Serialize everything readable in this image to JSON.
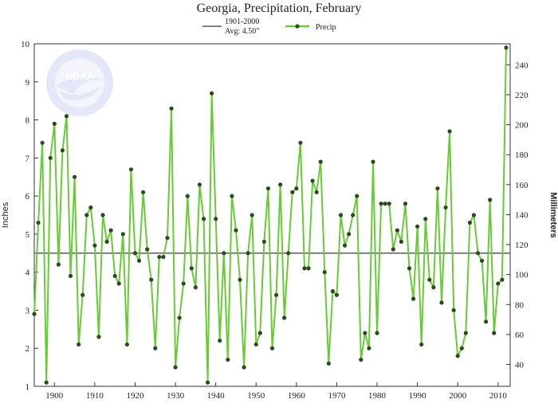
{
  "chart_data": {
    "type": "line",
    "title": "Georgia, Precipitation, February",
    "ylabel_left": "Inches",
    "ylabel_right": "Millimeters",
    "ylim": [
      1,
      10
    ],
    "xlim": [
      1895,
      2013
    ],
    "x_ticks": [
      1900,
      1910,
      1920,
      1930,
      1940,
      1950,
      1960,
      1970,
      1980,
      1990,
      2000,
      2010
    ],
    "y_ticks_left": [
      1,
      2,
      3,
      4,
      5,
      6,
      7,
      8,
      9,
      10
    ],
    "y_ticks_right": [
      40,
      60,
      80,
      100,
      120,
      140,
      160,
      180,
      200,
      220,
      240
    ],
    "grid": false,
    "legend_position": "top-center",
    "average": {
      "label_line1": "1901-2000",
      "label_line2": "Avg: 4.50\"",
      "value": 4.5,
      "color": "#666666"
    },
    "series": [
      {
        "name": "Precip",
        "color": "#66cc33",
        "marker_color": "#2d4a1e",
        "x": [
          1895,
          1896,
          1897,
          1898,
          1899,
          1900,
          1901,
          1902,
          1903,
          1904,
          1905,
          1906,
          1907,
          1908,
          1909,
          1910,
          1911,
          1912,
          1913,
          1914,
          1915,
          1916,
          1917,
          1918,
          1919,
          1920,
          1921,
          1922,
          1923,
          1924,
          1925,
          1926,
          1927,
          1928,
          1929,
          1930,
          1931,
          1932,
          1933,
          1934,
          1935,
          1936,
          1937,
          1938,
          1939,
          1940,
          1941,
          1942,
          1943,
          1944,
          1945,
          1946,
          1947,
          1948,
          1949,
          1950,
          1951,
          1952,
          1953,
          1954,
          1955,
          1956,
          1957,
          1958,
          1959,
          1960,
          1961,
          1962,
          1963,
          1964,
          1965,
          1966,
          1967,
          1968,
          1969,
          1970,
          1971,
          1972,
          1973,
          1974,
          1975,
          1976,
          1977,
          1978,
          1979,
          1980,
          1981,
          1982,
          1983,
          1984,
          1985,
          1986,
          1987,
          1988,
          1989,
          1990,
          1991,
          1992,
          1993,
          1994,
          1995,
          1996,
          1997,
          1998,
          1999,
          2000,
          2001,
          2002,
          2003,
          2004,
          2005,
          2006,
          2007,
          2008,
          2009,
          2010,
          2011,
          2012
        ],
        "values": [
          2.9,
          5.3,
          7.4,
          1.1,
          7.0,
          7.9,
          4.2,
          7.2,
          8.1,
          3.9,
          6.5,
          2.1,
          3.4,
          5.5,
          5.7,
          4.7,
          2.3,
          5.5,
          4.8,
          5.1,
          3.9,
          3.7,
          5.0,
          2.1,
          6.7,
          4.5,
          4.3,
          6.1,
          4.6,
          3.8,
          2.0,
          4.4,
          4.4,
          4.9,
          8.3,
          1.5,
          2.8,
          3.7,
          6.0,
          4.1,
          3.6,
          6.3,
          5.4,
          1.1,
          8.7,
          5.4,
          2.2,
          4.5,
          1.7,
          6.0,
          5.1,
          3.8,
          1.5,
          4.5,
          5.5,
          2.1,
          2.4,
          4.8,
          6.2,
          2.0,
          3.4,
          6.3,
          2.8,
          4.5,
          6.1,
          6.2,
          7.4,
          4.1,
          4.1,
          6.4,
          6.1,
          6.9,
          4.0,
          1.6,
          3.5,
          3.4,
          5.5,
          4.7,
          5.0,
          5.5,
          6.0,
          1.7,
          2.4,
          2.0,
          6.9,
          2.4,
          5.8,
          5.8,
          5.8,
          4.6,
          5.1,
          4.8,
          5.8,
          4.1,
          3.3,
          5.2,
          2.1,
          5.4,
          3.8,
          3.6,
          6.2,
          3.2,
          5.7,
          7.7,
          3.0,
          1.8,
          2.0,
          2.4,
          5.3,
          5.5,
          4.5,
          4.3,
          2.7,
          5.9,
          2.4,
          3.7,
          3.8,
          9.9
        ]
      }
    ],
    "watermark": {
      "text": "NOAA",
      "ring_text": "NATIONAL OCEANIC AND ATMOSPHERIC ADMINISTRATION"
    }
  }
}
